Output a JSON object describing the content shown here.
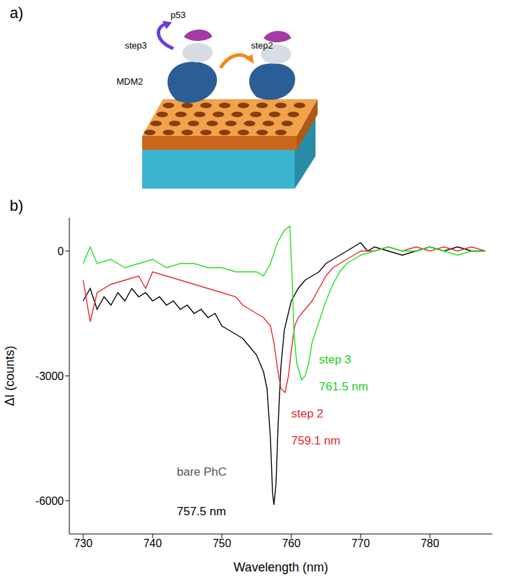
{
  "diagram": {
    "letter": "a)",
    "labels": {
      "protein_top": "p53",
      "protein_bottom": "MDM2",
      "arrow_left": "step3",
      "arrow_right": "step2"
    }
  },
  "chart_data": {
    "type": "line",
    "letter": "b)",
    "x_label": "Wavelength (nm)",
    "y_label": "ΔI (counts)",
    "xlim": [
      728,
      789
    ],
    "ylim": [
      -6800,
      800
    ],
    "xticks": [
      730,
      740,
      750,
      760,
      770,
      780
    ],
    "yticks": [
      -6000,
      -3000,
      0
    ],
    "series": [
      {
        "name": "bare PhC",
        "color": "#000000",
        "x": [
          730,
          731,
          732,
          733,
          734,
          735,
          736,
          737,
          738,
          739,
          740,
          741,
          742,
          743,
          744,
          745,
          746,
          747,
          748,
          749,
          750,
          751,
          752,
          753,
          754,
          755,
          756,
          756.5,
          757,
          757.3,
          757.5,
          757.8,
          758.1,
          758.5,
          759,
          760,
          761,
          762,
          763,
          764,
          765,
          766,
          767,
          768,
          769,
          770,
          771,
          772,
          774,
          776,
          778,
          780,
          782,
          784,
          786,
          788
        ],
        "values": [
          -1200,
          -900,
          -1400,
          -1100,
          -1300,
          -1000,
          -1200,
          -900,
          -1100,
          -1000,
          -1200,
          -1100,
          -1300,
          -1200,
          -1400,
          -1300,
          -1500,
          -1400,
          -1600,
          -1500,
          -1800,
          -1900,
          -2000,
          -2100,
          -2300,
          -2500,
          -2900,
          -3300,
          -4500,
          -5800,
          -6100,
          -5600,
          -4200,
          -2800,
          -1900,
          -1200,
          -900,
          -700,
          -600,
          -500,
          -300,
          -200,
          -100,
          0,
          100,
          200,
          0,
          100,
          0,
          -100,
          0,
          100,
          0,
          100,
          0,
          0
        ]
      },
      {
        "name": "step 2",
        "color": "#e8262a",
        "x": [
          730,
          731,
          732,
          734,
          736,
          738,
          739,
          740,
          742,
          744,
          746,
          748,
          750,
          752,
          753,
          754,
          755,
          756,
          757,
          757.5,
          758,
          758.5,
          759.1,
          759.6,
          760,
          760.5,
          761,
          762,
          763,
          764,
          765,
          766,
          767,
          768,
          769,
          770,
          772,
          774,
          776,
          778,
          780,
          782,
          784,
          786,
          788
        ],
        "values": [
          -700,
          -1700,
          -1000,
          -800,
          -700,
          -600,
          -900,
          -500,
          -600,
          -700,
          -800,
          -900,
          -1000,
          -1100,
          -1300,
          -1400,
          -1500,
          -1600,
          -1800,
          -2200,
          -2800,
          -3300,
          -3400,
          -3000,
          -2400,
          -1800,
          -1600,
          -1400,
          -1200,
          -900,
          -600,
          -400,
          -300,
          -200,
          -100,
          0,
          0,
          100,
          0,
          100,
          0,
          100,
          0,
          100,
          0
        ]
      },
      {
        "name": "step 3",
        "color": "#22dd22",
        "x": [
          730,
          731,
          732,
          734,
          736,
          738,
          740,
          742,
          744,
          746,
          748,
          750,
          752,
          754,
          755,
          756,
          757,
          758,
          759,
          759.8,
          760.1,
          760.4,
          760.8,
          761.5,
          762,
          762.5,
          763,
          764,
          765,
          766,
          767,
          768,
          770,
          772,
          774,
          776,
          778,
          780,
          782,
          784,
          786,
          788
        ],
        "values": [
          -300,
          100,
          -300,
          -200,
          -400,
          -300,
          -200,
          -400,
          -300,
          -300,
          -400,
          -400,
          -500,
          -500,
          -500,
          -600,
          -300,
          200,
          500,
          600,
          -500,
          -2000,
          -2700,
          -3100,
          -3000,
          -2700,
          -2200,
          -1700,
          -1200,
          -800,
          -500,
          -300,
          -100,
          0,
          100,
          0,
          0,
          100,
          0,
          -100,
          0,
          0
        ]
      }
    ],
    "annotations": [
      {
        "text": "bare PhC",
        "x": 743,
        "y": -5300,
        "color": "#555555"
      },
      {
        "text": "757.5 nm",
        "x": 743,
        "y": -6250,
        "color": "#000000"
      },
      {
        "text": "step 2",
        "x": 759.5,
        "y": -3900,
        "color": "#e8262a"
      },
      {
        "text": "759.1 nm",
        "x": 759.5,
        "y": -4550,
        "color": "#e8262a"
      },
      {
        "text": "step 3",
        "x": 763.5,
        "y": -2600,
        "color": "#22cc22"
      },
      {
        "text": "761.5 nm",
        "x": 763.5,
        "y": -3250,
        "color": "#22cc22"
      }
    ]
  }
}
